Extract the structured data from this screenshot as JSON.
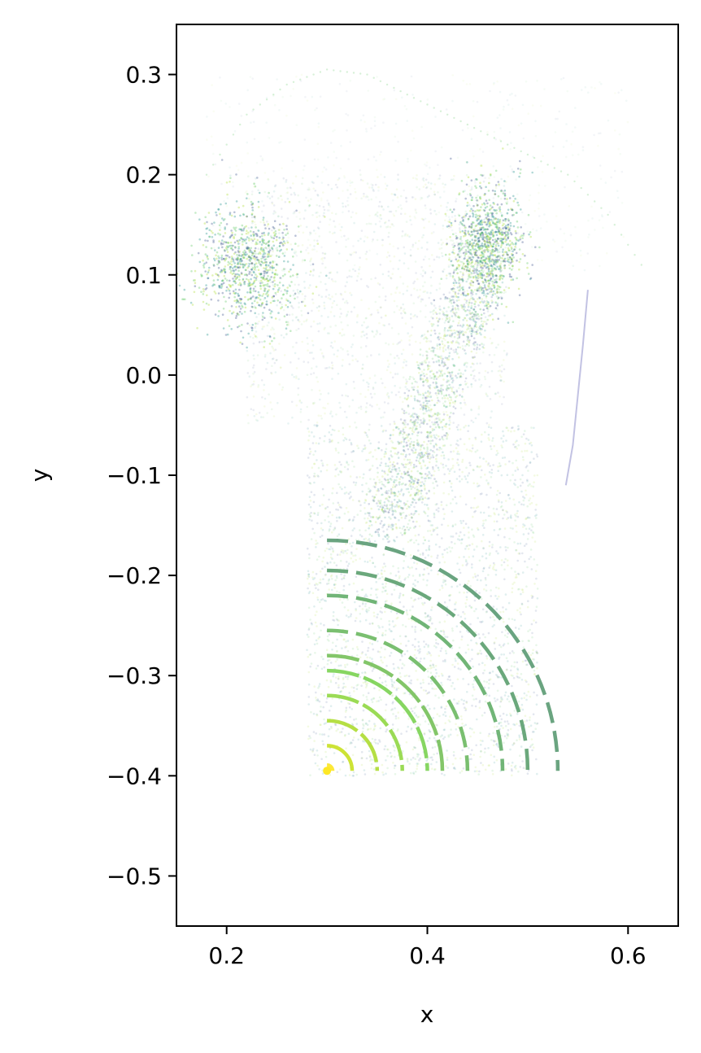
{
  "chart_data": {
    "type": "scatter",
    "title": "",
    "xlabel": "x",
    "ylabel": "y",
    "xlim": [
      0.15,
      0.65
    ],
    "ylim": [
      -0.55,
      0.35
    ],
    "x_ticks": [
      0.2,
      0.4,
      0.6
    ],
    "x_tick_labels": [
      "0.2",
      "0.4",
      "0.6"
    ],
    "y_ticks": [
      0.3,
      0.2,
      0.1,
      0.0,
      -0.1,
      -0.2,
      -0.3,
      -0.4,
      -0.5
    ],
    "y_tick_labels": [
      "0.3",
      "0.2",
      "0.1",
      "0.0",
      "−0.1",
      "−0.2",
      "−0.3",
      "−0.4",
      "−0.5"
    ],
    "grid": false,
    "legend": "none",
    "colormap": [
      "#3b528b",
      "#21918c",
      "#5ec962",
      "#addc30",
      "#fde725"
    ],
    "point_clouds": [
      {
        "kind": "gaussian",
        "cx": 0.22,
        "cy": 0.11,
        "sx": 0.025,
        "sy": 0.03,
        "n": 900,
        "alpha": 0.35
      },
      {
        "kind": "gaussian",
        "cx": 0.46,
        "cy": 0.13,
        "sx": 0.018,
        "sy": 0.03,
        "n": 900,
        "alpha": 0.35
      },
      {
        "kind": "band",
        "x0": 0.36,
        "y0": -0.15,
        "x1": 0.46,
        "y1": 0.13,
        "width": 0.05,
        "n": 1400,
        "alpha": 0.2
      },
      {
        "kind": "box",
        "xmin": 0.28,
        "xmax": 0.51,
        "ymin": -0.4,
        "ymax": -0.05,
        "n": 2600,
        "alpha": 0.14
      },
      {
        "kind": "box",
        "xmin": 0.22,
        "xmax": 0.48,
        "ymin": -0.05,
        "ymax": 0.2,
        "n": 1400,
        "alpha": 0.1
      },
      {
        "kind": "box",
        "xmin": 0.18,
        "xmax": 0.6,
        "ymin": 0.1,
        "ymax": 0.3,
        "n": 500,
        "alpha": 0.06
      }
    ],
    "arcs": {
      "center": [
        0.3,
        -0.395
      ],
      "radii": [
        0.005,
        0.025,
        0.05,
        0.075,
        0.1,
        0.115,
        0.14,
        0.175,
        0.2,
        0.23
      ],
      "colors": [
        "#fde725",
        "#c8e020",
        "#addc30",
        "#90d743",
        "#7ad151",
        "#75c059",
        "#6cb860",
        "#62ad68",
        "#5b9f6e",
        "#5a9a72"
      ]
    },
    "faint_curve": {
      "x": [
        0.56,
        0.555,
        0.55,
        0.545,
        0.538
      ],
      "y": [
        0.085,
        0.03,
        -0.02,
        -0.07,
        -0.11
      ]
    },
    "outer_trace": {
      "x": [
        0.18,
        0.22,
        0.26,
        0.3,
        0.34,
        0.38,
        0.42,
        0.46,
        0.5,
        0.54,
        0.58,
        0.62
      ],
      "y": [
        0.2,
        0.26,
        0.29,
        0.305,
        0.3,
        0.28,
        0.26,
        0.24,
        0.22,
        0.2,
        0.16,
        0.1
      ]
    }
  }
}
